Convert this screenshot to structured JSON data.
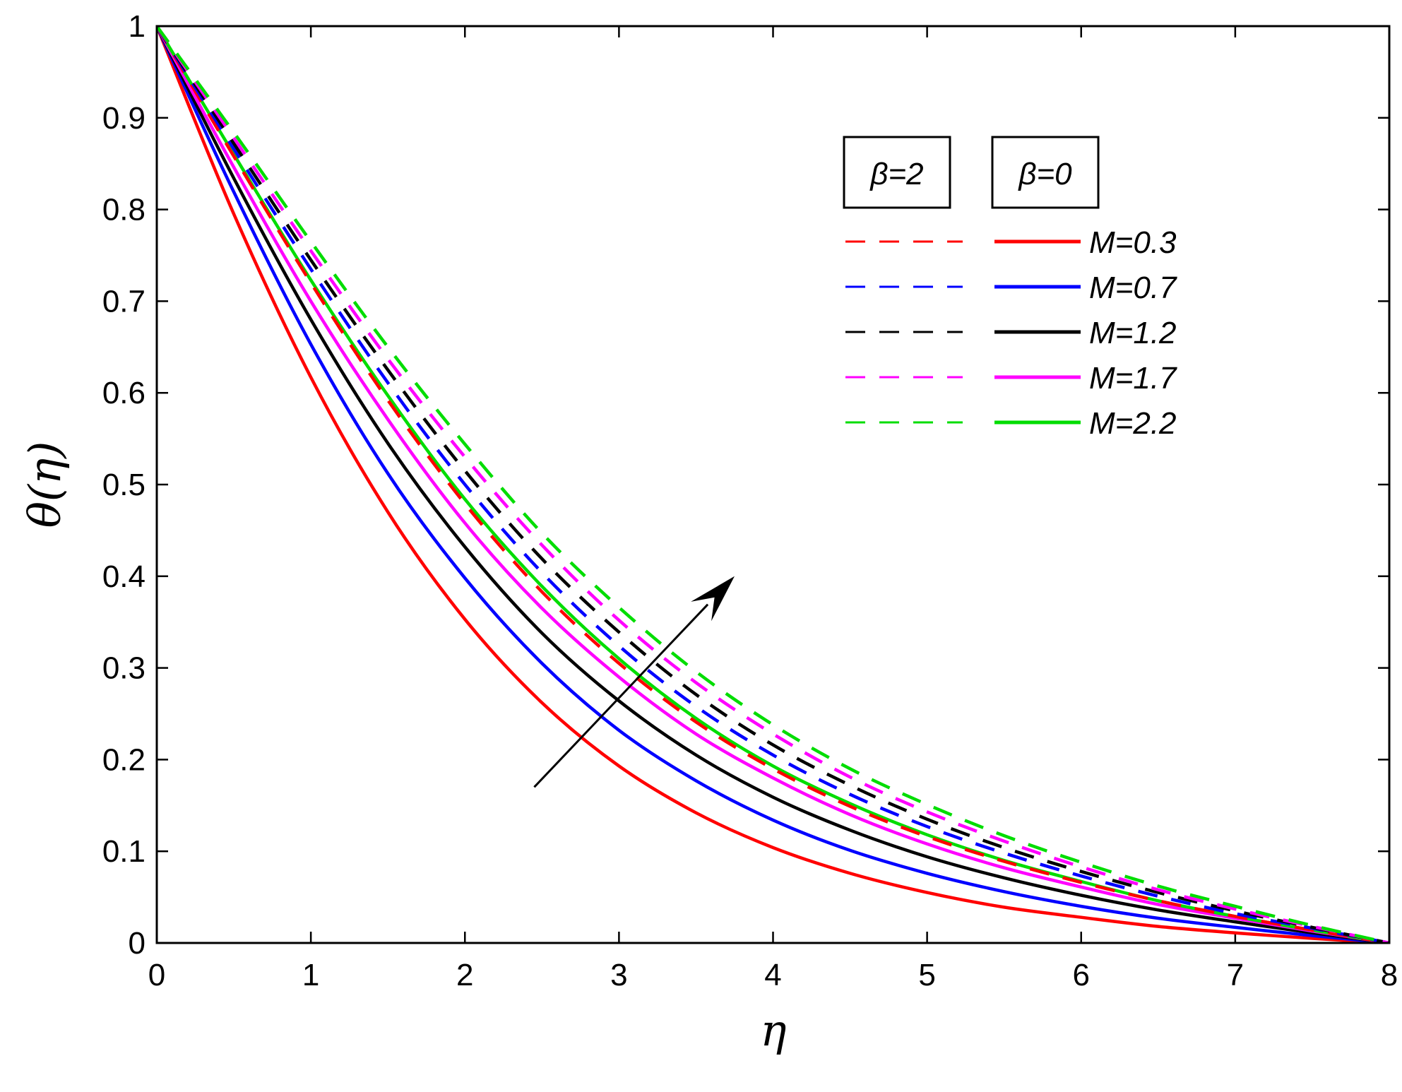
{
  "chart_data": {
    "type": "line",
    "title": "",
    "xlabel": "η",
    "ylabel": "θ(η)",
    "xlim": [
      0,
      8
    ],
    "ylim": [
      0,
      1
    ],
    "xticks": [
      "0",
      "1",
      "2",
      "3",
      "4",
      "5",
      "6",
      "7",
      "8"
    ],
    "yticks": [
      "0",
      "0.1",
      "0.2",
      "0.3",
      "0.4",
      "0.5",
      "0.6",
      "0.7",
      "0.8",
      "0.9",
      "1"
    ],
    "x": [
      0,
      0.5,
      1,
      1.5,
      2,
      2.5,
      3,
      3.5,
      4,
      4.5,
      5,
      5.5,
      6,
      6.5,
      7,
      7.5,
      8
    ],
    "legend": {
      "group_headers": [
        "β=2",
        "β=0"
      ],
      "entries": [
        "M=0.3",
        "M=0.7",
        "M=1.2",
        "M=1.7",
        "M=2.2"
      ],
      "location": "top-right"
    },
    "series": [
      {
        "name": "M=0.3",
        "group": "β=0",
        "style": "solid",
        "color": "#ff0000",
        "values": [
          1,
          0.795,
          0.617,
          0.47,
          0.353,
          0.262,
          0.193,
          0.142,
          0.104,
          0.076,
          0.055,
          0.039,
          0.028,
          0.018,
          0.011,
          0.005,
          0
        ]
      },
      {
        "name": "M=0.7",
        "group": "β=0",
        "style": "solid",
        "color": "#0000ff",
        "values": [
          1,
          0.819,
          0.653,
          0.512,
          0.398,
          0.305,
          0.232,
          0.177,
          0.134,
          0.101,
          0.076,
          0.056,
          0.04,
          0.027,
          0.017,
          0.008,
          0
        ]
      },
      {
        "name": "M=1.2",
        "group": "β=0",
        "style": "solid",
        "color": "#000000",
        "values": [
          1,
          0.834,
          0.68,
          0.545,
          0.432,
          0.338,
          0.264,
          0.205,
          0.159,
          0.123,
          0.094,
          0.071,
          0.052,
          0.036,
          0.023,
          0.011,
          0
        ]
      },
      {
        "name": "M=1.7",
        "group": "β=0",
        "style": "solid",
        "color": "#ff00ff",
        "values": [
          1,
          0.846,
          0.7,
          0.571,
          0.458,
          0.365,
          0.29,
          0.228,
          0.18,
          0.14,
          0.108,
          0.082,
          0.061,
          0.042,
          0.027,
          0.013,
          0
        ]
      },
      {
        "name": "M=2.2",
        "group": "β=0",
        "style": "solid",
        "color": "#00dd00",
        "values": [
          1,
          0.86,
          0.723,
          0.597,
          0.484,
          0.389,
          0.31,
          0.245,
          0.193,
          0.152,
          0.118,
          0.09,
          0.067,
          0.046,
          0.029,
          0.014,
          0
        ]
      },
      {
        "name": "M=0.3",
        "group": "β=2",
        "style": "dashed",
        "color": "#ff0000",
        "values": [
          1,
          0.858,
          0.72,
          0.592,
          0.479,
          0.383,
          0.305,
          0.241,
          0.19,
          0.149,
          0.116,
          0.089,
          0.066,
          0.046,
          0.029,
          0.014,
          0
        ]
      },
      {
        "name": "M=0.7",
        "group": "β=2",
        "style": "dashed",
        "color": "#0000ff",
        "values": [
          1,
          0.866,
          0.735,
          0.611,
          0.5,
          0.404,
          0.324,
          0.258,
          0.205,
          0.162,
          0.127,
          0.098,
          0.073,
          0.051,
          0.032,
          0.016,
          0
        ]
      },
      {
        "name": "M=1.2",
        "group": "β=2",
        "style": "dashed",
        "color": "#000000",
        "values": [
          1,
          0.872,
          0.745,
          0.625,
          0.515,
          0.419,
          0.339,
          0.271,
          0.216,
          0.172,
          0.135,
          0.104,
          0.078,
          0.055,
          0.035,
          0.017,
          0
        ]
      },
      {
        "name": "M=1.7",
        "group": "β=2",
        "style": "dashed",
        "color": "#ff00ff",
        "values": [
          1,
          0.878,
          0.755,
          0.637,
          0.53,
          0.434,
          0.352,
          0.284,
          0.228,
          0.181,
          0.143,
          0.111,
          0.083,
          0.058,
          0.037,
          0.018,
          0
        ]
      },
      {
        "name": "M=2.2",
        "group": "β=2",
        "style": "dashed",
        "color": "#00dd00",
        "values": [
          1,
          0.884,
          0.765,
          0.65,
          0.544,
          0.447,
          0.366,
          0.296,
          0.238,
          0.19,
          0.151,
          0.117,
          0.088,
          0.062,
          0.04,
          0.019,
          0
        ]
      }
    ],
    "annotations": [
      {
        "type": "arrow",
        "from": [
          2.45,
          0.17
        ],
        "to": [
          3.75,
          0.4
        ],
        "meaning": "increasing M"
      }
    ]
  }
}
